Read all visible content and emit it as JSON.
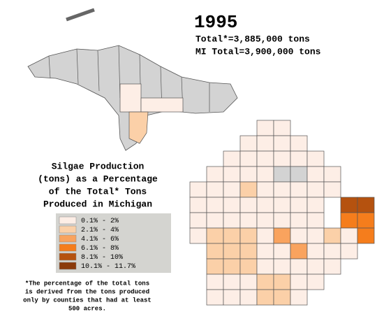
{
  "header": {
    "year": "1995",
    "total": "Total*=3,885,000 tons",
    "mi_total": "MI Total=3,900,000 tons"
  },
  "legend": {
    "title_lines": [
      "Silgae Production",
      "(tons) as a Percentage",
      "of the Total* Tons",
      "Produced in Michigan"
    ],
    "items": [
      {
        "label": "0.1% - 2%",
        "color": "#fdeee6"
      },
      {
        "label": "2.1% - 4%",
        "color": "#fbd0a8"
      },
      {
        "label": "4.1% - 6%",
        "color": "#f9a35e"
      },
      {
        "label": "6.1% - 8%",
        "color": "#f57d1c"
      },
      {
        "label": "8.1% - 10%",
        "color": "#b5520f"
      },
      {
        "label": "10.1% - 11.7%",
        "color": "#8b3a0a"
      }
    ]
  },
  "footnote": [
    "*The percentage of the total tons",
    "is derived from the tons produced",
    "only by counties that had at least",
    "500 acres."
  ]
}
